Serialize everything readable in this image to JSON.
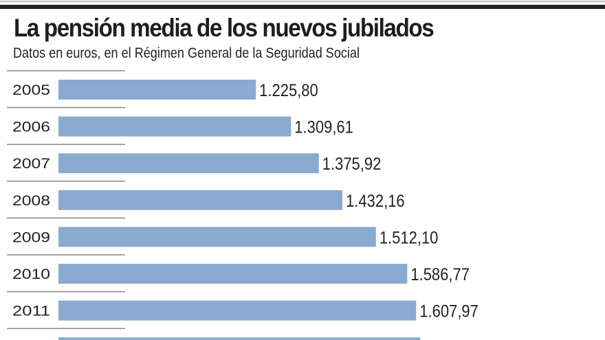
{
  "chart_data": {
    "type": "bar",
    "orientation": "horizontal",
    "title": "La pensión media de los nuevos jubilados",
    "subtitle": "Datos en euros, en el Régimen General de la Seguridad Social",
    "categories": [
      "2005",
      "2006",
      "2007",
      "2008",
      "2009",
      "2010",
      "2011",
      ""
    ],
    "values": [
      1225.8,
      1309.61,
      1375.92,
      1432.16,
      1512.1,
      1586.77,
      1607.97,
      1618
    ],
    "value_labels": [
      "1.225,80",
      "1.309,61",
      "1.375,92",
      "1.432,16",
      "1.512,10",
      "1.586,77",
      "1.607,97",
      ""
    ],
    "grid": false,
    "bar_color": "#8aabcf"
  }
}
